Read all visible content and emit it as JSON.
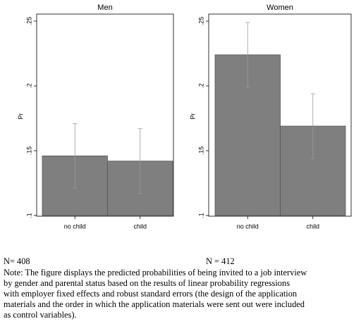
{
  "chart_data": [
    {
      "type": "bar",
      "title": "Men",
      "y_label": "Pr",
      "categories": [
        "no child",
        "child"
      ],
      "values": [
        0.146,
        0.142
      ],
      "errors": [
        0.025,
        0.025
      ],
      "color": "#7f7f7f",
      "ylim": [
        0.1,
        0.25
      ],
      "yticks": [
        {
          "value": 0.1,
          "label": ".1"
        },
        {
          "value": 0.15,
          "label": ".15"
        },
        {
          "value": 0.2,
          "label": ".2"
        },
        {
          "value": 0.25,
          "label": ".25"
        }
      ]
    },
    {
      "type": "bar",
      "title": "Women",
      "y_label": "Pr",
      "categories": [
        "no child",
        "child"
      ],
      "values": [
        0.224,
        0.169
      ],
      "errors": [
        0.025,
        0.025
      ],
      "color": "#7f7f7f",
      "ylim": [
        0.1,
        0.25
      ],
      "yticks": [
        {
          "value": 0.1,
          "label": ".1"
        },
        {
          "value": 0.15,
          "label": ".15"
        },
        {
          "value": 0.2,
          "label": ".2"
        },
        {
          "value": 0.25,
          "label": ".25"
        }
      ]
    }
  ],
  "notes": {
    "n": [
      "N= 408",
      "N = 412"
    ],
    "lines": [
      "Note: The figure displays the predicted probabilities of being invited to a job interview",
      "by gender and parental status based on the results of linear probability regressions",
      "with employer fixed effects and robust standard errors (the design of the application",
      "materials and the order in which the application materials were sent out were included",
      "as control variables)."
    ]
  }
}
